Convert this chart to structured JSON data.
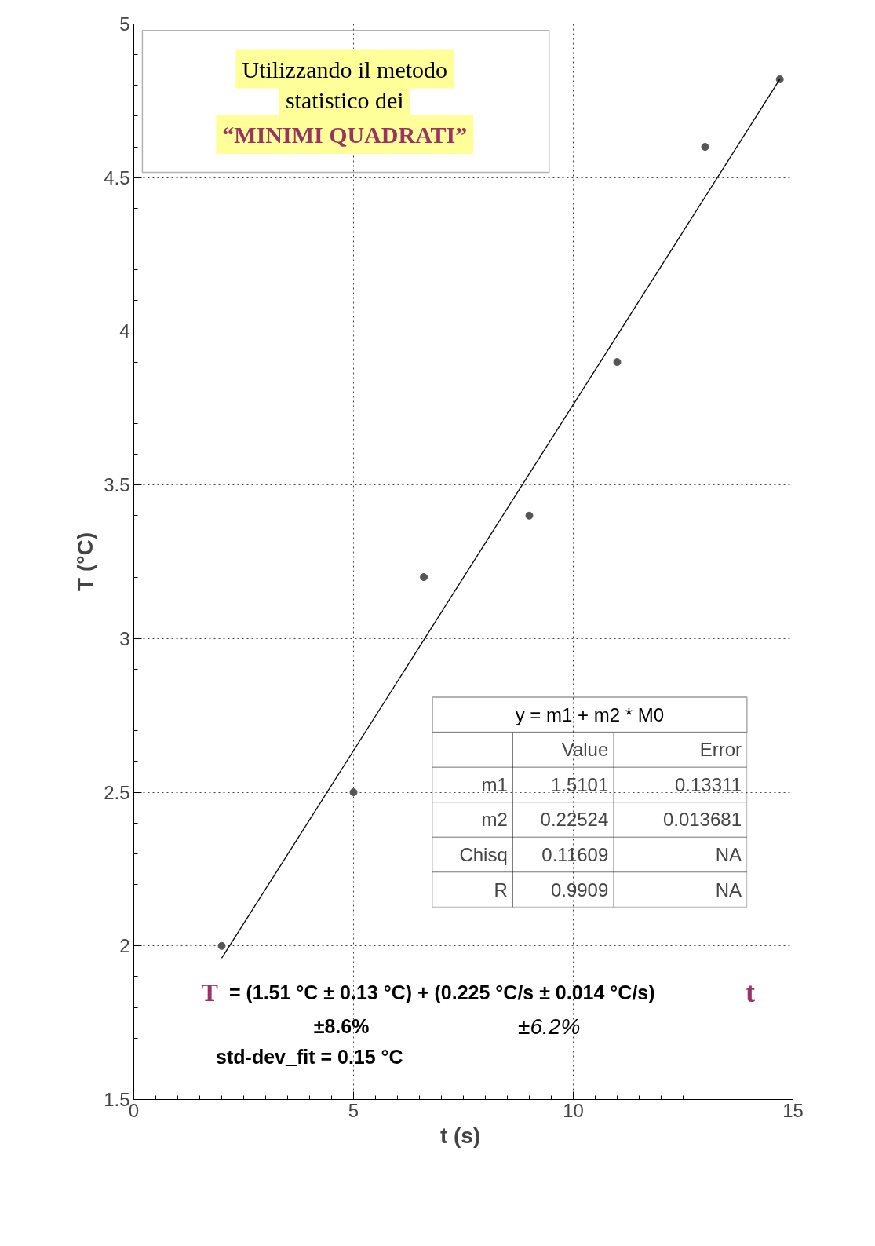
{
  "chart_data": {
    "type": "scatter",
    "xlabel": "t  (s)",
    "ylabel": "T (°C)",
    "xlim": [
      0,
      15
    ],
    "ylim": [
      1.5,
      5
    ],
    "xticks": [
      0,
      5,
      10,
      15
    ],
    "yticks": [
      1.5,
      2,
      2.5,
      3,
      3.5,
      4,
      4.5,
      5
    ],
    "grid": true,
    "series": [
      {
        "color": "#555555",
        "marker": "circle",
        "x": [
          2,
          5,
          6.6,
          9,
          11,
          13,
          14.7
        ],
        "values": [
          2.0,
          2.5,
          3.2,
          3.4,
          3.9,
          4.6,
          4.82
        ]
      },
      {
        "type": "line",
        "color": "#000000",
        "line_style": "solid",
        "x": [
          2,
          14.7
        ],
        "values": [
          1.96,
          4.82
        ]
      }
    ],
    "annotations": [
      "Utilizzando il metodo",
      "statistico dei",
      "“MINIMI QUADRATI”",
      "y = m1 + m2 * M0",
      "Value",
      "Error",
      "m1",
      "1.5101",
      "0.13311",
      "m2",
      "0.22524",
      "0.013681",
      "Chisq",
      "0.11609",
      "NA",
      "R",
      "0.9909",
      "NA",
      "T",
      "= (1.51 °C ± 0.13 °C) + (0.225 °C/s ± 0.014 °C/s)",
      "t",
      "±8.6%",
      "±6.2%",
      "std-dev_fit = 0.15 °C"
    ]
  }
}
